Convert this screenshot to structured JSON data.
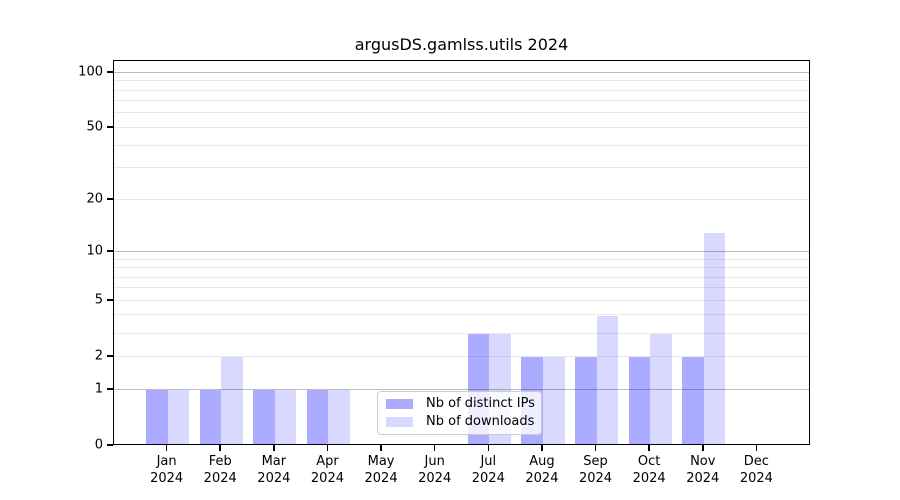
{
  "title": "argusDS.gamlss.utils 2024",
  "colors": {
    "ips_bar": "rgba(0,0,255,0.33)",
    "downloads_bar": "rgba(0,0,255,0.15)",
    "grid_minor": "#e9e9e9",
    "grid_major": "#bdbdbd",
    "spine": "#000000"
  },
  "legend": {
    "items": [
      {
        "label": "Nb of distinct IPs",
        "series_key": "ips"
      },
      {
        "label": "Nb of downloads",
        "series_key": "downloads"
      }
    ]
  },
  "chart_data": {
    "type": "bar",
    "title": "argusDS.gamlss.utils 2024",
    "scale": "log1p",
    "grid": "on",
    "legend_position": "bottom-center-inside",
    "categories": [
      "Jan",
      "Feb",
      "Mar",
      "Apr",
      "May",
      "Jun",
      "Jul",
      "Aug",
      "Sep",
      "Oct",
      "Nov",
      "Dec"
    ],
    "year_label": "2024",
    "series": [
      {
        "name": "Nb of distinct IPs",
        "values": [
          1,
          1,
          1,
          1,
          0,
          0,
          3,
          2,
          2,
          2,
          2,
          0
        ]
      },
      {
        "name": "Nb of downloads",
        "values": [
          1,
          2,
          1,
          1,
          0,
          0,
          3,
          2,
          4,
          3,
          13,
          0
        ]
      }
    ],
    "yticks": [
      0,
      1,
      2,
      5,
      10,
      20,
      50,
      100
    ],
    "ytick_labels": [
      "0",
      "1",
      "2",
      "5",
      "10",
      "20",
      "50",
      "100"
    ],
    "grid_major_values": [
      1,
      10,
      100
    ],
    "grid_minor_values": [
      2,
      3,
      4,
      5,
      6,
      7,
      8,
      9,
      20,
      30,
      40,
      50,
      60,
      70,
      80,
      90
    ],
    "ylim": [
      0,
      115
    ],
    "xlabel": "",
    "ylabel": ""
  }
}
